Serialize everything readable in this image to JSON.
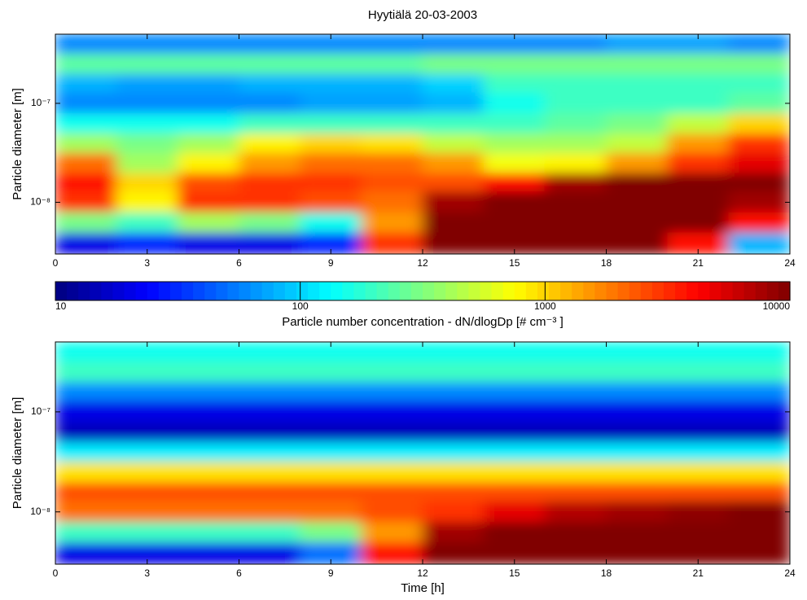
{
  "chart_data": [
    {
      "type": "heatmap",
      "title": "Hyytiälä 20-03-2003",
      "ylabel": "Particle diameter [m]",
      "colormap": "jet",
      "ylog": true,
      "xlim": [
        0,
        24
      ],
      "xticks": [
        0,
        3,
        6,
        9,
        12,
        15,
        18,
        21,
        24
      ],
      "ylim": [
        3e-09,
        5e-07
      ],
      "yticks": [
        {
          "value": 1e-08,
          "label": "10⁻⁸"
        },
        {
          "value": 1e-07,
          "label": "10⁻⁷"
        }
      ],
      "x_edges": [
        0,
        2,
        4,
        6,
        8,
        10,
        12,
        14,
        16,
        18,
        20,
        22,
        24
      ],
      "y_edges": [
        3e-09,
        5e-09,
        8e-09,
        1.3e-08,
        2e-08,
        3.2e-08,
        5e-08,
        8e-08,
        1.3e-07,
        2e-07,
        3.2e-07,
        5e-07
      ],
      "z": [
        [
          20,
          30,
          20,
          20,
          30,
          3000,
          10000,
          10000,
          10000,
          10000,
          4000,
          80
        ],
        [
          300,
          200,
          400,
          300,
          150,
          1500,
          10000,
          10000,
          10000,
          10000,
          10000,
          4000
        ],
        [
          3000,
          800,
          3000,
          3000,
          2500,
          2000,
          8000,
          10000,
          10000,
          10000,
          10000,
          8000
        ],
        [
          4000,
          1000,
          2500,
          3000,
          3000,
          2500,
          2500,
          4000,
          8000,
          10000,
          10000,
          10000
        ],
        [
          2000,
          400,
          800,
          1500,
          2000,
          2000,
          1500,
          700,
          800,
          1500,
          3000,
          5000
        ],
        [
          400,
          300,
          400,
          800,
          1000,
          900,
          500,
          400,
          400,
          500,
          1500,
          3000
        ],
        [
          150,
          150,
          150,
          200,
          200,
          200,
          200,
          200,
          250,
          300,
          500,
          1000
        ],
        [
          60,
          60,
          60,
          60,
          70,
          70,
          80,
          150,
          200,
          200,
          200,
          250
        ],
        [
          80,
          70,
          70,
          80,
          80,
          80,
          100,
          200,
          200,
          200,
          200,
          200
        ],
        [
          250,
          250,
          250,
          250,
          250,
          250,
          300,
          300,
          300,
          300,
          300,
          300
        ],
        [
          60,
          60,
          60,
          60,
          60,
          60,
          60,
          60,
          60,
          70,
          70,
          60
        ]
      ],
      "colorbar": {
        "lim": [
          10,
          10000
        ],
        "log": true,
        "ticks": [
          10,
          100,
          1000,
          10000
        ],
        "label": "Particle number concentration - dN/dlogDp [# cm⁻³ ]"
      }
    },
    {
      "type": "heatmap",
      "ylabel": "Particle diameter [m]",
      "xlabel": "Time [h]",
      "colormap": "jet",
      "ylog": true,
      "xlim": [
        0,
        24
      ],
      "xticks": [
        0,
        3,
        6,
        9,
        12,
        15,
        18,
        21,
        24
      ],
      "ylim": [
        3e-09,
        5e-07
      ],
      "yticks": [
        {
          "value": 1e-08,
          "label": "10⁻⁸"
        },
        {
          "value": 1e-07,
          "label": "10⁻⁷"
        }
      ],
      "x_edges": [
        0,
        2,
        4,
        6,
        8,
        10,
        12,
        14,
        16,
        18,
        20,
        22,
        24
      ],
      "y_edges": [
        3e-09,
        5e-09,
        8e-09,
        1.3e-08,
        2e-08,
        3.2e-08,
        5e-08,
        8e-08,
        1.3e-07,
        2e-07,
        3.2e-07,
        5e-07
      ],
      "z": [
        [
          20,
          20,
          20,
          20,
          50,
          4000,
          10000,
          10000,
          10000,
          10000,
          10000,
          10000
        ],
        [
          200,
          200,
          200,
          200,
          300,
          1500,
          8000,
          10000,
          10000,
          10000,
          10000,
          10000
        ],
        [
          2000,
          2000,
          2000,
          2000,
          2000,
          2500,
          3000,
          5000,
          7000,
          8000,
          9000,
          10000
        ],
        [
          2500,
          2500,
          2500,
          2500,
          2500,
          2500,
          2500,
          2500,
          2500,
          2500,
          2500,
          2500
        ],
        [
          900,
          900,
          900,
          900,
          900,
          900,
          900,
          900,
          900,
          900,
          900,
          900
        ],
        [
          120,
          120,
          120,
          120,
          120,
          120,
          120,
          120,
          120,
          120,
          120,
          120
        ],
        [
          15,
          15,
          15,
          15,
          15,
          15,
          15,
          15,
          15,
          15,
          15,
          15
        ],
        [
          20,
          20,
          20,
          20,
          20,
          20,
          20,
          20,
          20,
          20,
          20,
          20
        ],
        [
          60,
          60,
          60,
          60,
          60,
          60,
          60,
          60,
          60,
          60,
          60,
          60
        ],
        [
          200,
          200,
          200,
          200,
          200,
          200,
          200,
          200,
          200,
          200,
          200,
          200
        ],
        [
          150,
          150,
          150,
          150,
          150,
          150,
          150,
          150,
          150,
          150,
          150,
          150
        ]
      ]
    }
  ]
}
